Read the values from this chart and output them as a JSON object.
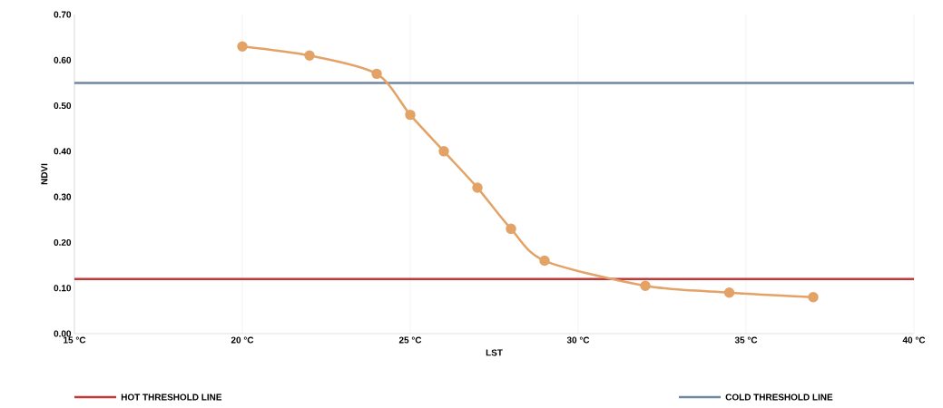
{
  "chart_data": {
    "type": "line",
    "xlabel": "LST",
    "ylabel": "NDVI",
    "x": [
      20,
      22,
      24,
      25,
      26,
      27,
      28,
      29,
      32,
      34.5,
      37
    ],
    "values": [
      0.63,
      0.61,
      0.57,
      0.48,
      0.4,
      0.32,
      0.23,
      0.16,
      0.105,
      0.09,
      0.08
    ],
    "color": "#e3a266",
    "marker": "circle",
    "line_style": "solid",
    "xlim": [
      15,
      40
    ],
    "xticks": [
      {
        "value": 15,
        "label": "15 °C"
      },
      {
        "value": 20,
        "label": "20 °C"
      },
      {
        "value": 25,
        "label": "25 °C"
      },
      {
        "value": 30,
        "label": "30 °C"
      },
      {
        "value": 35,
        "label": "35 °C"
      },
      {
        "value": 40,
        "label": "40 °C"
      }
    ],
    "ylim": [
      0,
      0.7
    ],
    "yticks": [
      {
        "value": 0,
        "label": "0.00"
      },
      {
        "value": 0.1,
        "label": "0.10"
      },
      {
        "value": 0.2,
        "label": "0.20"
      },
      {
        "value": 0.3,
        "label": "0.30"
      },
      {
        "value": 0.4,
        "label": "0.40"
      },
      {
        "value": 0.5,
        "label": "0.50"
      },
      {
        "value": 0.6,
        "label": "0.60"
      },
      {
        "value": 0.7,
        "label": "0.70"
      }
    ],
    "ref_lines": [
      {
        "axis": "y",
        "value": 0.12,
        "label": "HOT THRESHOLD LINE",
        "color": "#c0393b"
      },
      {
        "axis": "y",
        "value": 0.55,
        "label": "COLD THRESHOLD LINE",
        "color": "#6f87a3"
      }
    ],
    "grid": "x",
    "legend": "bottom"
  }
}
